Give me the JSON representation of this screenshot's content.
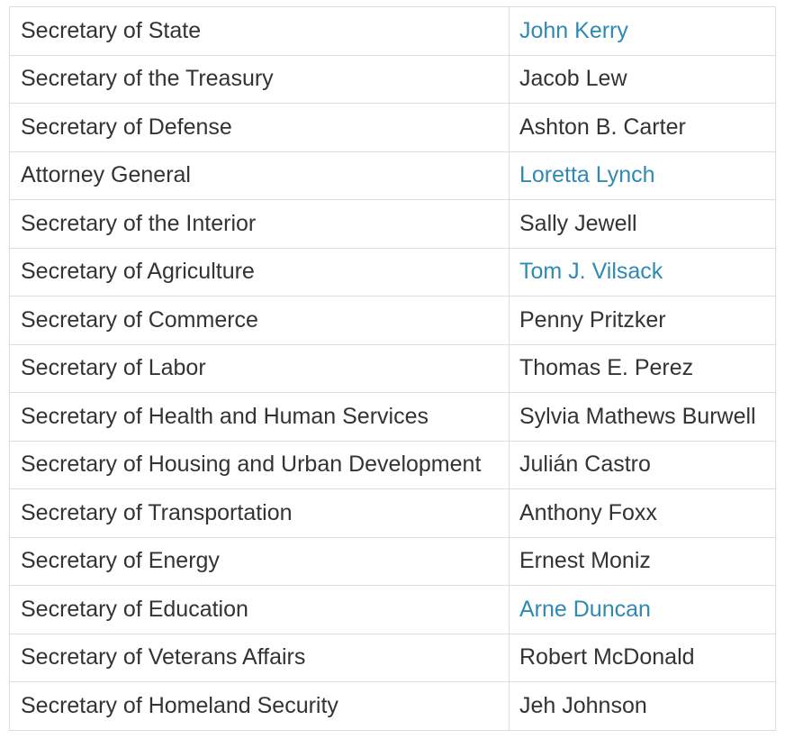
{
  "cabinet": {
    "rows": [
      {
        "position": "Secretary of State",
        "name": "John Kerry",
        "linked": true
      },
      {
        "position": "Secretary of the Treasury",
        "name": "Jacob Lew",
        "linked": false
      },
      {
        "position": "Secretary of Defense",
        "name": "Ashton B. Carter",
        "linked": false
      },
      {
        "position": "Attorney General",
        "name": "Loretta Lynch",
        "linked": true
      },
      {
        "position": "Secretary of the Interior",
        "name": "Sally Jewell",
        "linked": false
      },
      {
        "position": "Secretary of Agriculture",
        "name": "Tom J. Vilsack",
        "linked": true
      },
      {
        "position": "Secretary of Commerce",
        "name": "Penny Pritzker",
        "linked": false
      },
      {
        "position": "Secretary of Labor",
        "name": "Thomas E. Perez",
        "linked": false
      },
      {
        "position": "Secretary of Health and Human Services",
        "name": "Sylvia Mathews Burwell",
        "linked": false
      },
      {
        "position": "Secretary of Housing and Urban Development",
        "name": "Julián Castro",
        "linked": false
      },
      {
        "position": "Secretary of Transportation",
        "name": "Anthony Foxx",
        "linked": false
      },
      {
        "position": "Secretary of Energy",
        "name": "Ernest Moniz",
        "linked": false
      },
      {
        "position": "Secretary of Education",
        "name": "Arne Duncan",
        "linked": true
      },
      {
        "position": "Secretary of Veterans Affairs",
        "name": "Robert McDonald",
        "linked": false
      },
      {
        "position": "Secretary of Homeland Security",
        "name": "Jeh Johnson",
        "linked": false
      }
    ]
  },
  "colors": {
    "link": "#2f89b5",
    "text": "#333333",
    "border": "#dedede"
  }
}
